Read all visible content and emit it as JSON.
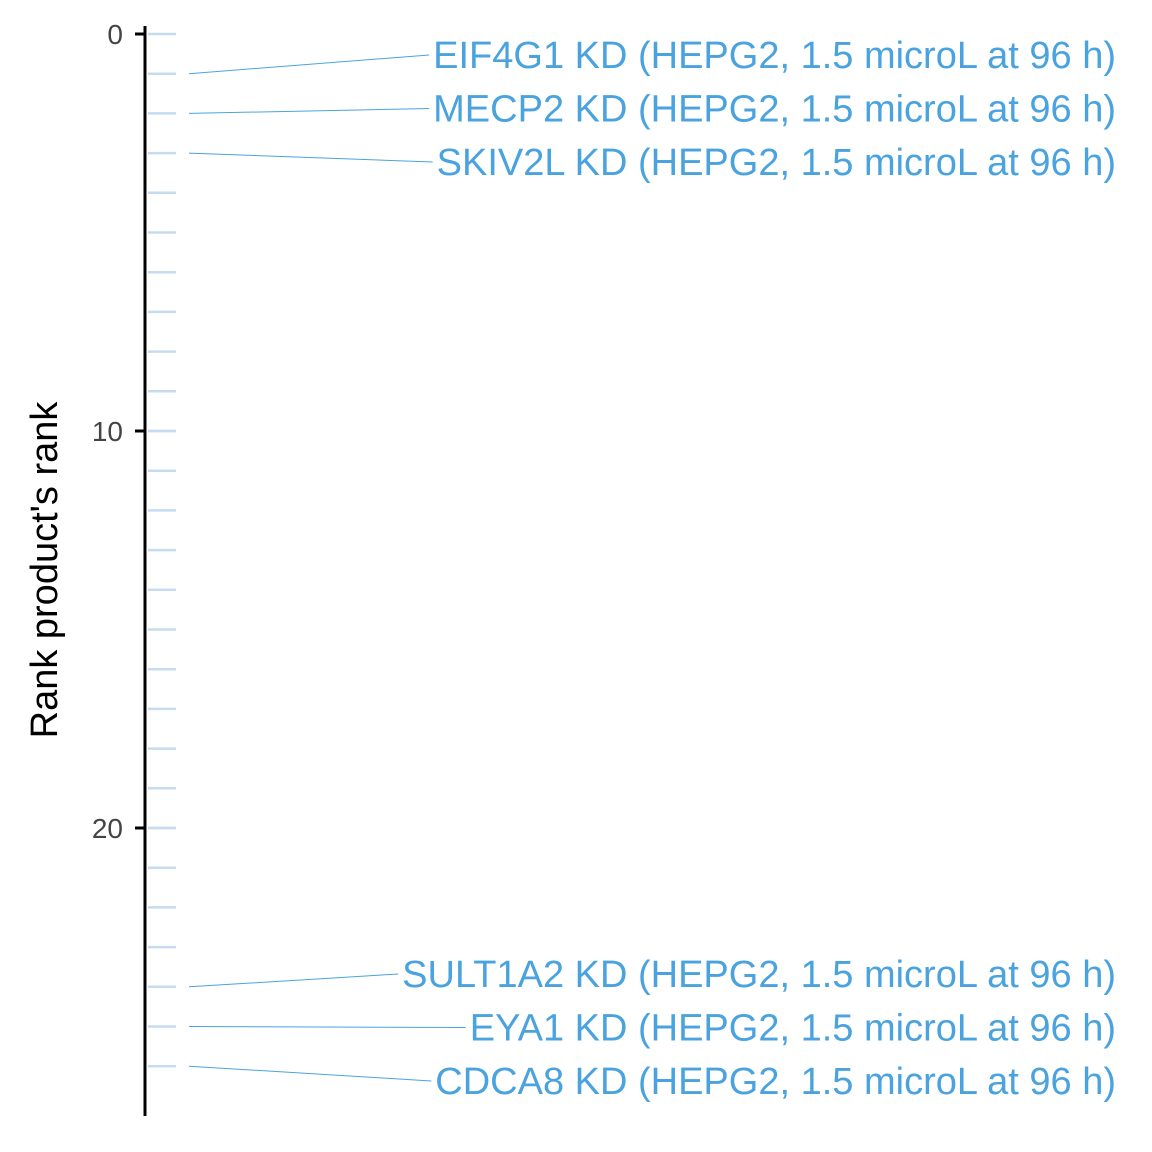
{
  "chart_data": {
    "type": "scatter",
    "ylabel": "Rank product's rank",
    "ylim": [
      0,
      27.2
    ],
    "y_reversed": true,
    "yticks": [
      0,
      10,
      20
    ],
    "ytick_labels": [
      "0",
      "10",
      "20"
    ],
    "rank_marks": [
      1,
      2,
      3,
      4,
      5,
      6,
      7,
      8,
      9,
      10,
      11,
      12,
      13,
      14,
      15,
      16,
      17,
      18,
      19,
      20,
      21,
      22,
      23,
      24,
      25,
      26
    ],
    "label_color": "#4aa3df",
    "mark_color": "#c6dbef",
    "labeled_points": [
      {
        "rank": 1,
        "label": "EIF4G1 KD (HEPG2, 1.5 microL at 96 h)"
      },
      {
        "rank": 2,
        "label": "MECP2 KD (HEPG2, 1.5 microL at 96 h)"
      },
      {
        "rank": 3,
        "label": "SKIV2L KD (HEPG2, 1.5 microL at 96 h)"
      },
      {
        "rank": 24,
        "label": "SULT1A2 KD (HEPG2, 1.5 microL at 96 h)"
      },
      {
        "rank": 25,
        "label": "EYA1 KD (HEPG2, 1.5 microL at 96 h)"
      },
      {
        "rank": 26,
        "label": "CDCA8 KD (HEPG2, 1.5 microL at 96 h)"
      }
    ]
  }
}
